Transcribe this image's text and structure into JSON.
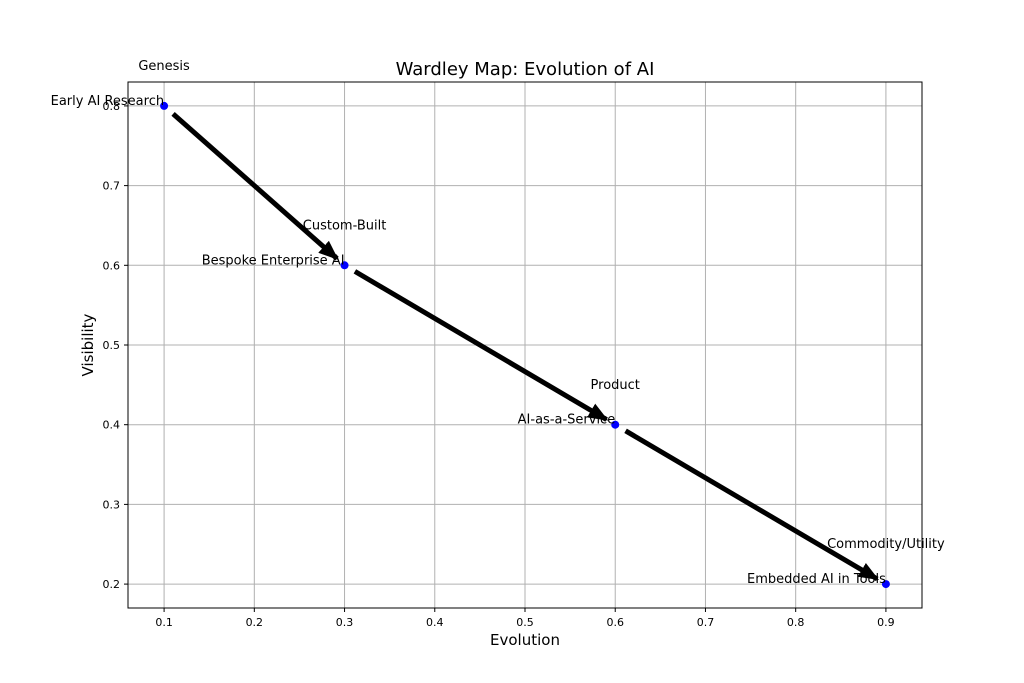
{
  "chart_data": {
    "type": "scatter",
    "title": "Wardley Map: Evolution of AI",
    "xlabel": "Evolution",
    "ylabel": "Visibility",
    "xlim": [
      0.06,
      0.94
    ],
    "ylim": [
      0.17,
      0.83
    ],
    "grid": true,
    "x_ticks": [
      "0.1",
      "0.2",
      "0.3",
      "0.4",
      "0.5",
      "0.6",
      "0.7",
      "0.8",
      "0.9"
    ],
    "y_ticks": [
      "0.2",
      "0.3",
      "0.4",
      "0.5",
      "0.6",
      "0.7",
      "0.8"
    ],
    "point_color": "#0000ff",
    "arrow_color": "#000000",
    "points": [
      {
        "label": "Early AI Research",
        "x": 0.1,
        "y": 0.8
      },
      {
        "label": "Bespoke Enterprise AI",
        "x": 0.3,
        "y": 0.6
      },
      {
        "label": "AI-as-a-Service",
        "x": 0.6,
        "y": 0.4
      },
      {
        "label": "Embedded AI in Tools",
        "x": 0.9,
        "y": 0.2
      }
    ],
    "stages": [
      {
        "label": "Genesis",
        "x": 0.1,
        "y": 0.85
      },
      {
        "label": "Custom-Built",
        "x": 0.3,
        "y": 0.65
      },
      {
        "label": "Product",
        "x": 0.6,
        "y": 0.45
      },
      {
        "label": "Commodity/Utility",
        "x": 0.9,
        "y": 0.25
      }
    ]
  }
}
